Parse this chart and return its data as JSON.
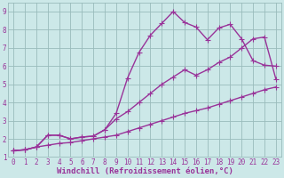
{
  "background_color": "#cce8e8",
  "grid_color": "#99bbbb",
  "line_color": "#993399",
  "marker": "+",
  "markersize": 4,
  "linewidth": 1.0,
  "xlim": [
    -0.5,
    23.5
  ],
  "ylim": [
    1.0,
    9.5
  ],
  "xticks": [
    0,
    1,
    2,
    3,
    4,
    5,
    6,
    7,
    8,
    9,
    10,
    11,
    12,
    13,
    14,
    15,
    16,
    17,
    18,
    19,
    20,
    21,
    22,
    23
  ],
  "yticks": [
    1,
    2,
    3,
    4,
    5,
    6,
    7,
    8,
    9
  ],
  "xlabel": "Windchill (Refroidissement éolien,°C)",
  "xlabel_fontsize": 6.5,
  "tick_fontsize": 5.5,
  "series": [
    {
      "x": [
        0,
        1,
        2,
        3,
        4,
        5,
        6,
        7,
        8,
        9,
        10,
        11,
        12,
        13,
        14,
        15,
        16,
        17,
        18,
        19,
        20,
        21,
        22,
        23
      ],
      "y": [
        1.35,
        1.4,
        1.55,
        2.2,
        2.2,
        2.0,
        2.1,
        2.15,
        2.5,
        3.4,
        5.35,
        6.75,
        7.7,
        8.35,
        9.0,
        8.4,
        8.15,
        7.45,
        8.1,
        8.3,
        7.5,
        6.3,
        6.05,
        6.0
      ]
    },
    {
      "x": [
        0,
        1,
        2,
        3,
        4,
        5,
        6,
        7,
        8,
        9,
        10,
        11,
        12,
        13,
        14,
        15,
        16,
        17,
        18,
        19,
        20,
        21,
        22,
        23
      ],
      "y": [
        1.35,
        1.4,
        1.55,
        2.2,
        2.2,
        2.0,
        2.1,
        2.15,
        2.5,
        3.1,
        3.5,
        4.0,
        4.5,
        5.0,
        5.4,
        5.8,
        5.5,
        5.8,
        6.2,
        6.5,
        7.0,
        7.5,
        7.6,
        5.3
      ]
    },
    {
      "x": [
        0,
        1,
        2,
        3,
        4,
        5,
        6,
        7,
        8,
        9,
        10,
        11,
        12,
        13,
        14,
        15,
        16,
        17,
        18,
        19,
        20,
        21,
        22,
        23
      ],
      "y": [
        1.35,
        1.4,
        1.55,
        1.65,
        1.75,
        1.8,
        1.9,
        2.0,
        2.1,
        2.2,
        2.4,
        2.6,
        2.8,
        3.0,
        3.2,
        3.4,
        3.55,
        3.7,
        3.9,
        4.1,
        4.3,
        4.5,
        4.7,
        4.85
      ]
    }
  ]
}
